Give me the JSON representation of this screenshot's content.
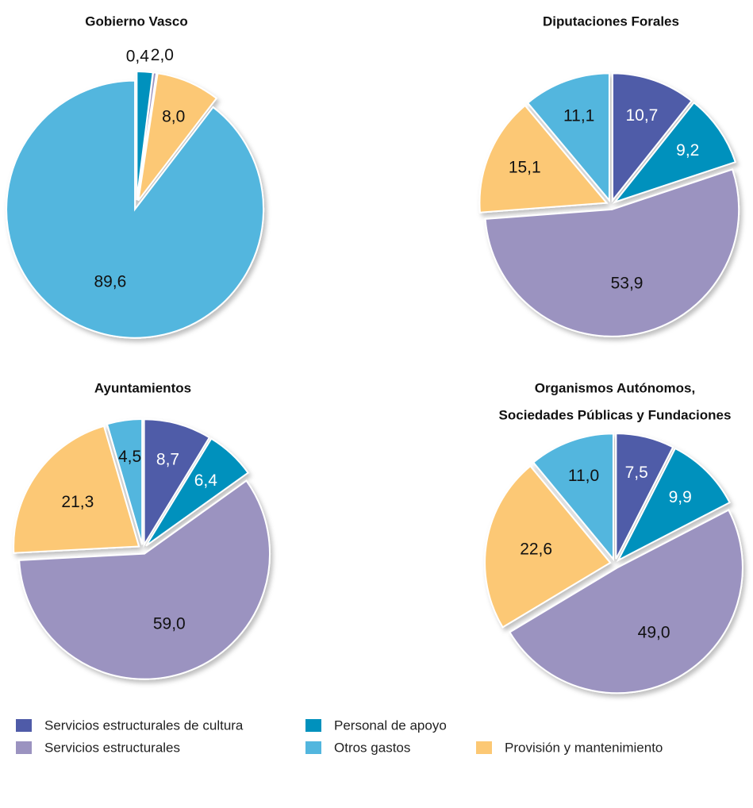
{
  "legend": {
    "items": [
      {
        "name": "Servicios estructurales de cultura",
        "color": "#4f5ba8"
      },
      {
        "name": "Personal de apoyo",
        "color": "#0091bd"
      },
      {
        "name": "Servicios estructurales",
        "color": "#9b93c0"
      },
      {
        "name": "Provisión y mantenimiento",
        "color": "#fcc874"
      },
      {
        "name": "Otros gastos",
        "color": "#52b6de"
      }
    ]
  },
  "chart_data": [
    {
      "type": "pie",
      "title": [
        "Gobierno Vasco"
      ],
      "values": [
        null,
        2.0,
        0.4,
        8.0,
        89.6
      ],
      "value_labels": [
        null,
        "2,0",
        "0,4",
        "8,0",
        "89,6"
      ]
    },
    {
      "type": "pie",
      "title": [
        "Diputaciones Forales"
      ],
      "values": [
        10.7,
        9.2,
        53.9,
        15.1,
        11.1
      ],
      "value_labels": [
        "10,7",
        "9,2",
        "53,9",
        "15,1",
        "11,1"
      ]
    },
    {
      "type": "pie",
      "title": [
        "Ayuntamientos"
      ],
      "values": [
        8.7,
        6.4,
        59.0,
        21.3,
        4.5
      ],
      "value_labels": [
        "8,7",
        "6,4",
        "59,0",
        "21,3",
        "4,5"
      ]
    },
    {
      "type": "pie",
      "title": [
        "Organismos Autónomos,",
        "Sociedades Públicas y Fundaciones"
      ],
      "values": [
        7.5,
        9.9,
        49.0,
        22.6,
        11.0
      ],
      "value_labels": [
        "7,5",
        "9,9",
        "49,0",
        "22,6",
        "11,0"
      ]
    }
  ]
}
